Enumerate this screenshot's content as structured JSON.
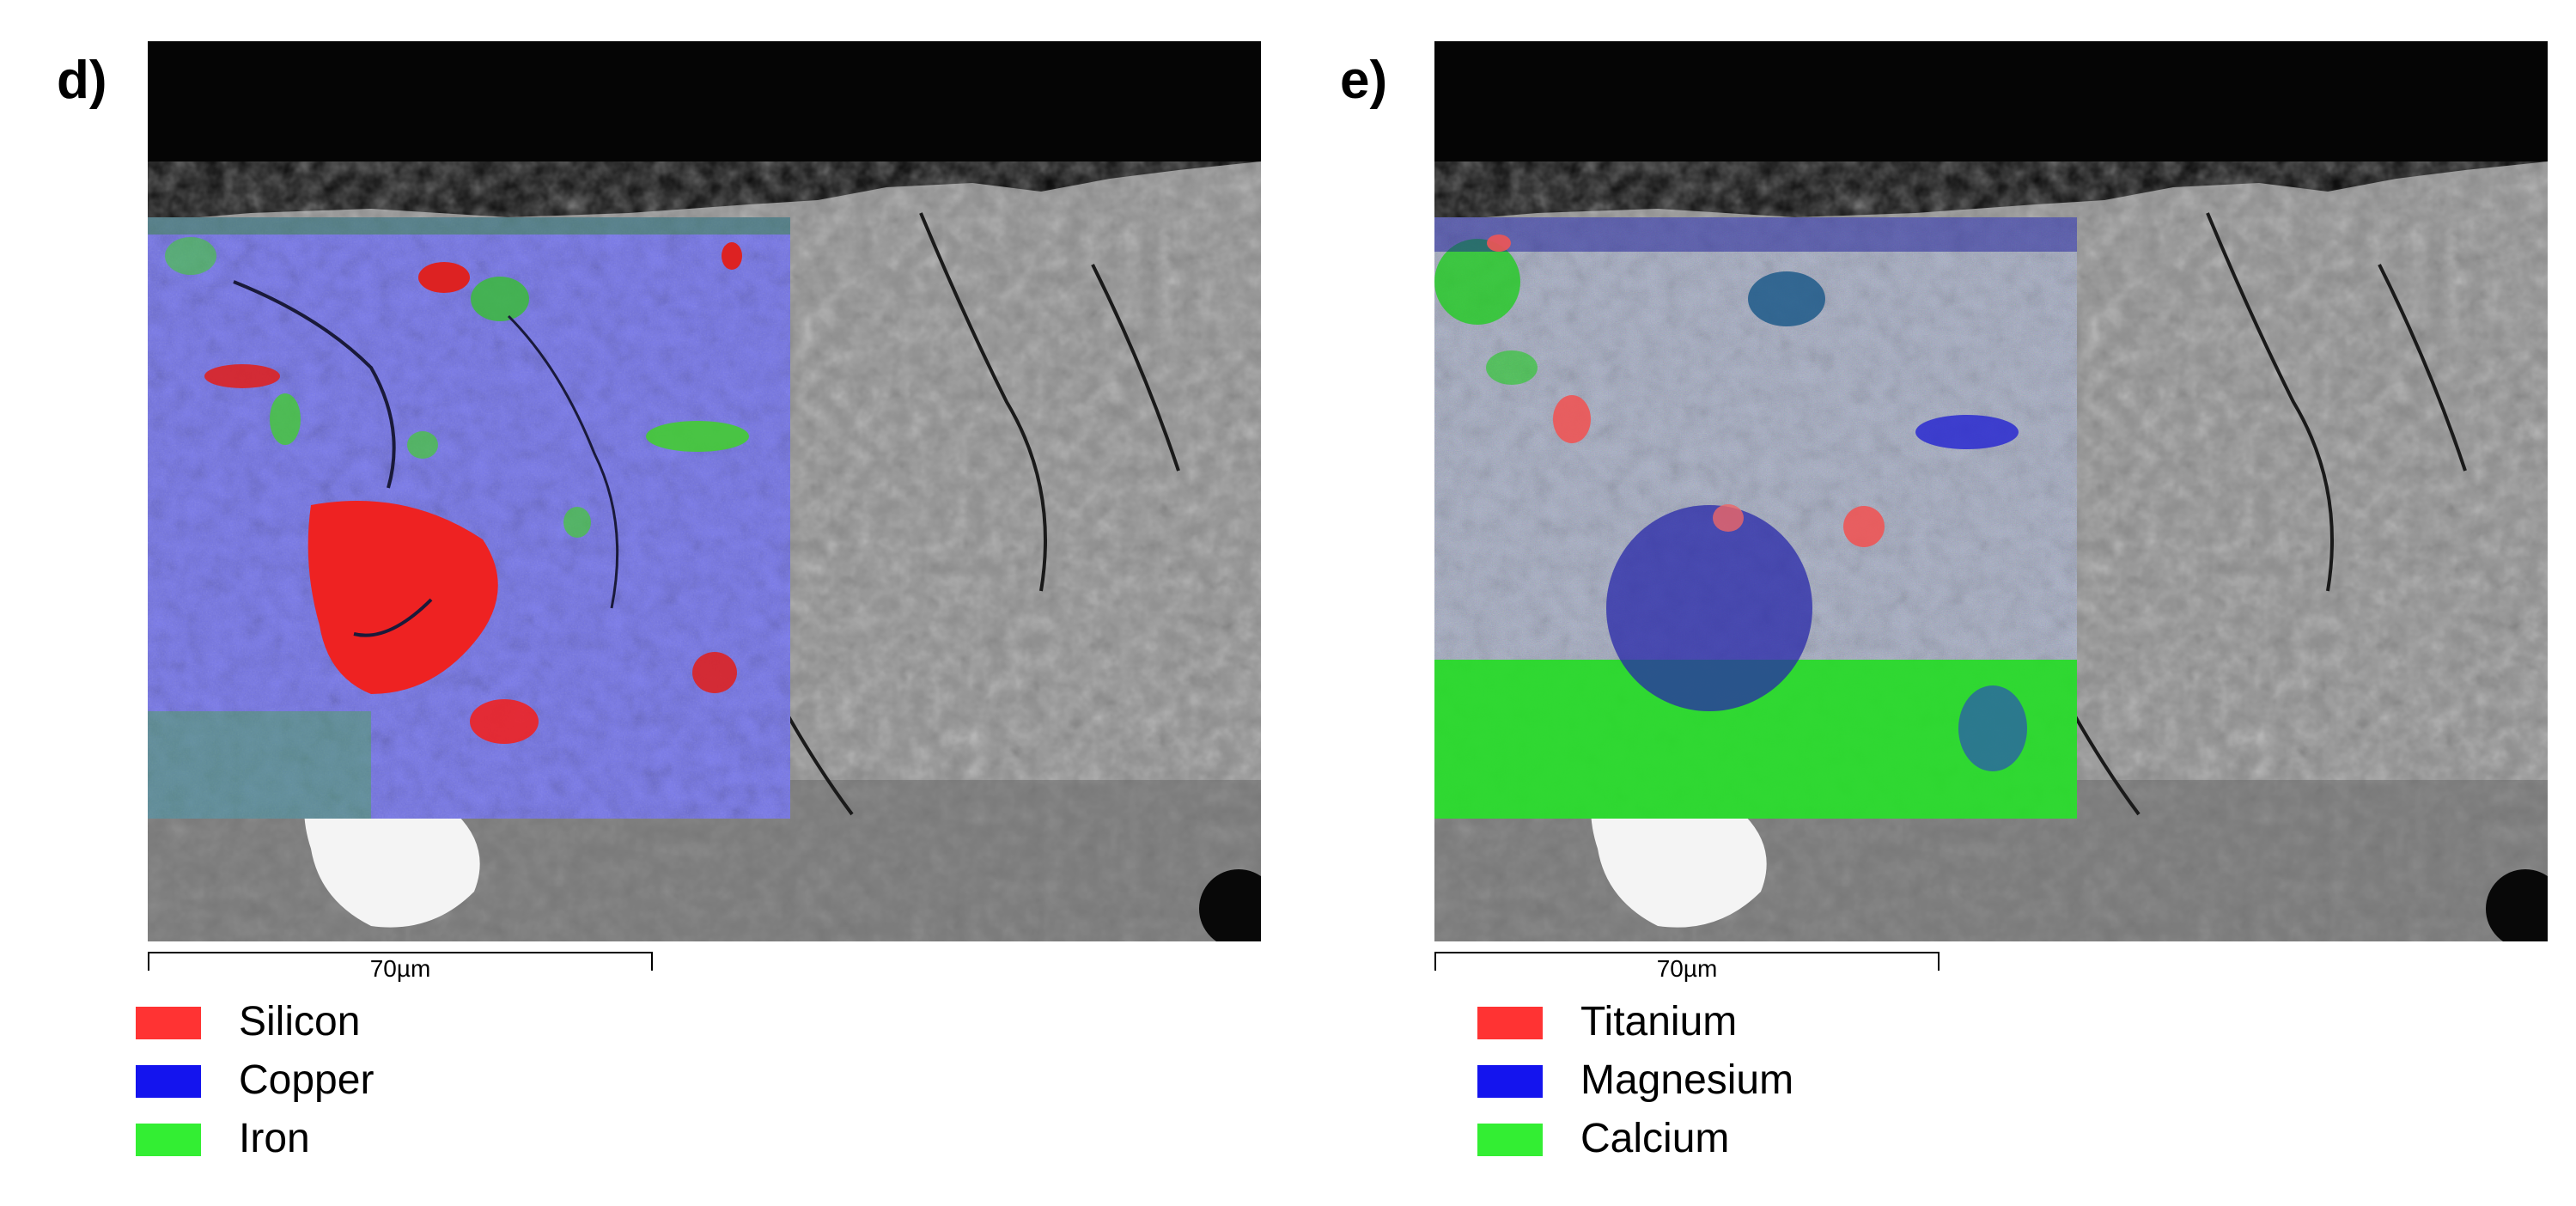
{
  "panels": [
    {
      "label": "d)",
      "scale_text": "70µm",
      "legend": [
        {
          "name": "Silicon",
          "color": "#ff3333"
        },
        {
          "name": "Copper",
          "color": "#1414ee"
        },
        {
          "name": "Iron",
          "color": "#33ee33"
        }
      ]
    },
    {
      "label": "e)",
      "scale_text": "70µm",
      "legend": [
        {
          "name": "Titanium",
          "color": "#ff3333"
        },
        {
          "name": "Magnesium",
          "color": "#1414ee"
        },
        {
          "name": "Calcium",
          "color": "#33ee33"
        }
      ]
    }
  ]
}
